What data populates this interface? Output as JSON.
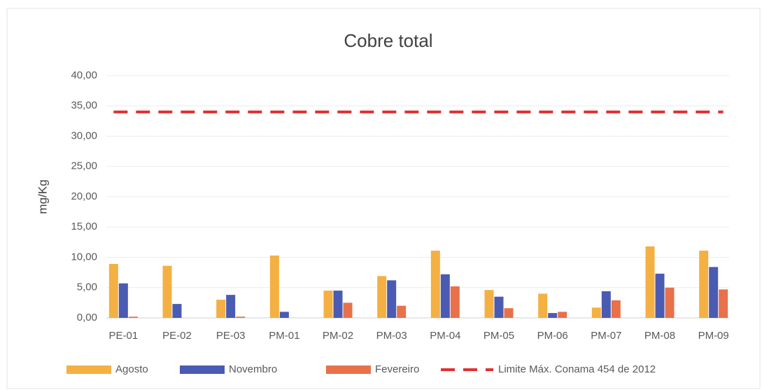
{
  "chart_data": {
    "type": "bar",
    "title": "Cobre total",
    "y_label": "mg/Kg",
    "categories": [
      "PE-01",
      "PE-02",
      "PE-03",
      "PM-01",
      "PM-02",
      "PM-03",
      "PM-04",
      "PM-05",
      "PM-06",
      "PM-07",
      "PM-08",
      "PM-09"
    ],
    "series": [
      {
        "name": "Agosto",
        "color": "#f4b042",
        "values": [
          8.9,
          8.6,
          3.0,
          10.3,
          4.5,
          6.9,
          11.1,
          4.6,
          4.0,
          1.7,
          11.8,
          11.1
        ]
      },
      {
        "name": "Novembro",
        "color": "#4a5bb3",
        "values": [
          5.7,
          2.3,
          3.8,
          1.0,
          4.5,
          6.2,
          7.2,
          3.5,
          0.8,
          4.4,
          7.3,
          8.4
        ]
      },
      {
        "name": "Fevereiro",
        "color": "#e8714a",
        "values": [
          0.2,
          0,
          0.2,
          0,
          2.5,
          2.0,
          5.2,
          1.6,
          1.0,
          2.9,
          5.0,
          4.7
        ]
      },
      {
        "name": "Limite Máx. Conama 454 de 2012",
        "color": "#e03030",
        "type": "line",
        "dashed": true,
        "values": [
          34,
          34,
          34,
          34,
          34,
          34,
          34,
          34,
          34,
          34,
          34,
          34
        ]
      }
    ],
    "ylim": [
      0,
      40
    ],
    "yticks": [
      {
        "value": 0,
        "label": "0,00"
      },
      {
        "value": 5,
        "label": "5,00"
      },
      {
        "value": 10,
        "label": "10,00"
      },
      {
        "value": 15,
        "label": "15,00"
      },
      {
        "value": 20,
        "label": "20,00"
      },
      {
        "value": 25,
        "label": "25,00"
      },
      {
        "value": 30,
        "label": "30,00"
      },
      {
        "value": 35,
        "label": "35,00"
      },
      {
        "value": 40,
        "label": "40,00"
      }
    ],
    "grid": true,
    "legend": "bottom"
  }
}
